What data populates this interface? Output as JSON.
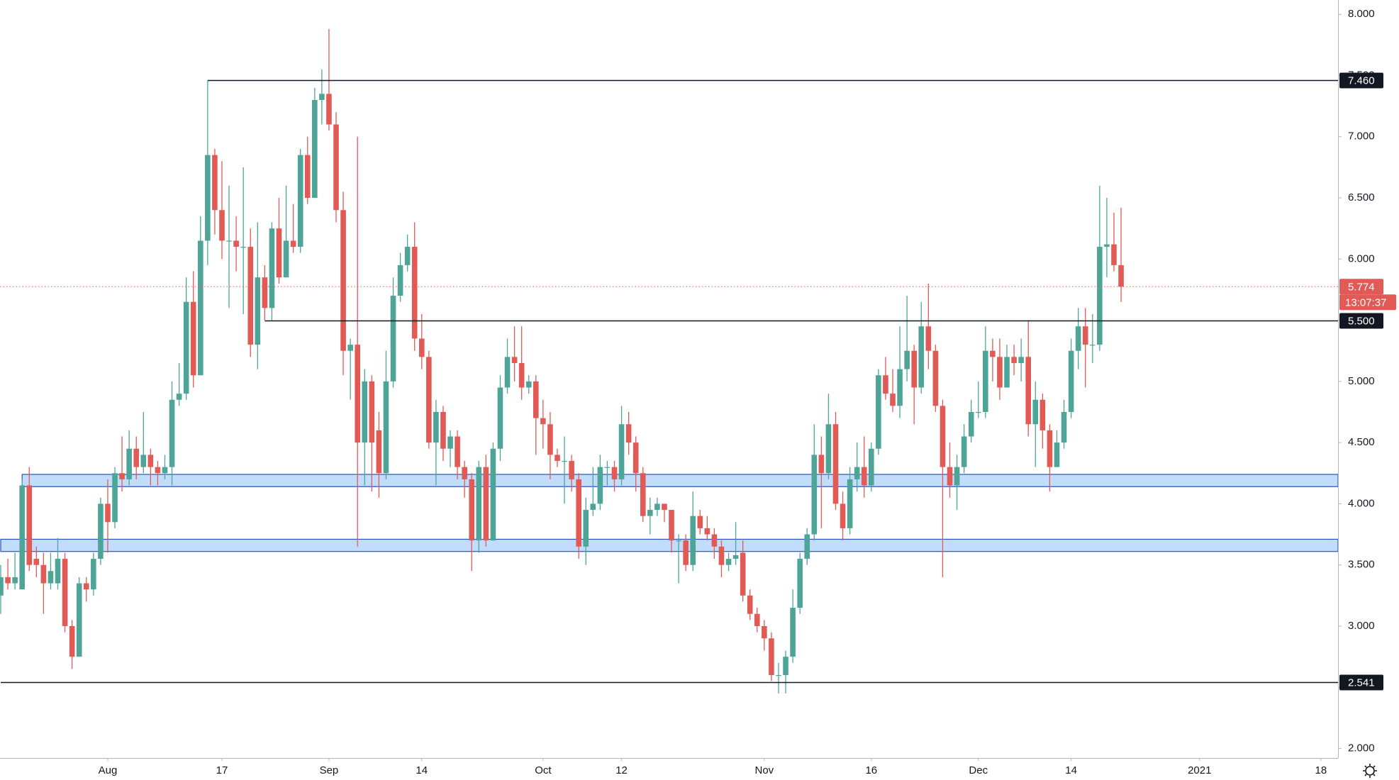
{
  "chart_data": {
    "type": "candlestick",
    "up_color": "#4ea597",
    "down_color": "#e15a55",
    "categories": [
      null,
      null,
      null,
      null,
      null,
      null,
      null,
      null,
      null,
      null,
      null,
      null,
      null,
      null,
      null,
      "Aug",
      null,
      null,
      null,
      null,
      null,
      null,
      null,
      null,
      null,
      null,
      null,
      null,
      null,
      null,
      null,
      "17",
      null,
      null,
      null,
      null,
      null,
      null,
      null,
      null,
      null,
      null,
      null,
      null,
      null,
      null,
      "Sep",
      null,
      null,
      null,
      null,
      null,
      null,
      null,
      null,
      null,
      null,
      null,
      null,
      "14",
      null,
      null,
      null,
      null,
      null,
      null,
      null,
      null,
      null,
      null,
      null,
      null,
      null,
      null,
      null,
      null,
      "Oct",
      null,
      null,
      null,
      null,
      null,
      null,
      null,
      null,
      null,
      null,
      "12",
      null,
      null,
      null,
      null,
      null,
      null,
      null,
      null,
      null,
      null,
      null,
      null,
      null,
      null,
      null,
      null,
      null,
      null,
      null,
      "Nov",
      null,
      null,
      null,
      null,
      null,
      null,
      null,
      null,
      null,
      null,
      null,
      null,
      null,
      null,
      "16",
      null,
      null,
      null,
      null,
      null,
      null,
      null,
      null,
      null,
      null,
      null,
      null,
      null,
      null,
      "Dec",
      null,
      null,
      null,
      null,
      null,
      null,
      null,
      null,
      null,
      null,
      null,
      null,
      "14",
      null,
      null,
      null,
      null,
      null,
      null,
      null,
      null,
      null,
      null,
      null,
      null,
      null,
      null,
      null,
      null,
      null,
      "2021",
      null,
      null,
      null,
      null,
      null,
      null,
      null,
      null,
      null,
      null,
      null,
      null,
      null,
      null,
      null,
      null,
      "18",
      null,
      null
    ],
    "open": [
      3.25,
      3.4,
      3.35,
      3.3,
      4.15,
      3.55,
      3.5,
      3.35,
      3.35,
      3.55,
      3.0,
      2.75,
      3.35,
      3.3,
      3.55,
      4.0,
      3.85,
      4.25,
      4.2,
      4.45,
      4.3,
      4.4,
      4.3,
      4.25,
      4.3,
      4.85,
      4.9,
      5.65,
      5.05,
      6.15,
      6.85,
      6.4,
      6.15,
      6.15,
      6.1,
      6.1,
      5.3,
      5.85,
      5.6,
      6.25,
      5.85,
      6.15,
      6.1,
      6.85,
      6.5,
      7.3,
      7.35,
      7.1,
      6.4,
      5.25,
      5.3,
      4.5,
      5.0,
      4.6,
      4.25,
      5.0,
      5.7,
      5.95,
      6.1,
      5.35,
      5.2,
      4.5,
      4.75,
      4.45,
      4.55,
      4.3,
      4.2,
      3.7,
      4.3,
      3.7,
      4.45,
      4.95,
      5.2,
      5.15,
      4.95,
      5.0,
      4.7,
      4.65,
      4.4,
      4.35,
      4.35,
      4.2,
      3.65,
      3.95,
      4.0,
      4.3,
      4.3,
      4.2,
      4.65,
      4.5,
      4.25,
      3.9,
      3.95,
      4.0,
      3.95,
      3.7,
      3.7,
      3.5,
      3.9,
      3.8,
      3.75,
      3.65,
      3.5,
      3.55,
      3.6,
      3.25,
      3.1,
      3.0,
      2.9,
      2.6,
      2.6,
      2.75,
      3.15,
      3.55,
      3.75,
      4.4,
      4.25,
      4.65,
      4.0,
      3.8,
      4.2,
      4.3,
      4.15,
      4.45,
      5.05,
      4.9,
      4.8,
      5.1,
      5.25,
      4.95,
      5.45,
      5.25,
      4.8,
      4.3,
      4.15,
      4.3,
      4.55,
      4.75,
      4.75,
      5.25,
      5.2,
      4.95,
      5.2,
      5.15,
      5.2,
      4.65,
      4.85,
      4.6,
      4.3,
      4.5,
      4.75,
      5.25,
      5.45,
      5.3,
      5.3,
      6.1,
      6.12,
      5.95,
      null,
      null,
      null,
      null,
      null,
      null,
      null,
      null,
      null,
      null,
      null,
      null,
      null,
      null,
      null,
      null,
      null,
      null,
      null,
      null,
      null,
      null,
      null,
      null,
      null,
      null,
      null,
      null,
      null,
      null
    ],
    "high": [
      3.5,
      3.55,
      3.6,
      4.2,
      4.3,
      3.65,
      3.6,
      3.6,
      3.72,
      3.6,
      3.05,
      3.4,
      3.4,
      3.6,
      4.05,
      4.2,
      4.3,
      4.55,
      4.6,
      4.55,
      4.75,
      4.45,
      4.35,
      4.4,
      5.0,
      5.15,
      5.85,
      5.9,
      6.35,
      7.46,
      6.9,
      6.8,
      6.6,
      6.35,
      6.75,
      6.25,
      6.3,
      5.95,
      6.3,
      6.5,
      6.6,
      6.45,
      6.9,
      7.0,
      7.4,
      7.55,
      7.88,
      7.2,
      6.55,
      5.35,
      7.0,
      5.1,
      5.05,
      4.75,
      5.25,
      5.85,
      6.05,
      6.2,
      6.3,
      5.55,
      5.25,
      4.85,
      4.8,
      4.6,
      4.6,
      4.35,
      4.25,
      4.35,
      4.4,
      4.5,
      5.05,
      5.35,
      5.45,
      5.45,
      5.05,
      5.05,
      4.85,
      4.75,
      4.45,
      4.55,
      4.4,
      4.25,
      4.05,
      4.3,
      4.4,
      4.35,
      4.35,
      4.8,
      4.75,
      4.55,
      4.3,
      4.05,
      4.05,
      4.0,
      3.95,
      3.75,
      3.75,
      4.1,
      3.95,
      3.9,
      3.8,
      3.7,
      3.6,
      3.85,
      3.7,
      3.3,
      3.15,
      3.05,
      2.95,
      2.7,
      2.8,
      3.3,
      3.6,
      3.8,
      4.65,
      4.55,
      4.9,
      4.75,
      4.1,
      4.3,
      4.5,
      4.55,
      4.5,
      5.1,
      5.2,
      5.1,
      5.45,
      5.7,
      5.3,
      5.65,
      5.8,
      5.3,
      4.85,
      4.5,
      4.4,
      4.65,
      4.85,
      5.0,
      5.45,
      5.35,
      5.35,
      5.3,
      5.3,
      5.35,
      5.5,
      5.0,
      4.9,
      4.65,
      4.6,
      4.85,
      5.35,
      5.6,
      5.6,
      5.55,
      6.6,
      6.5,
      6.38,
      6.42,
      null,
      null,
      null,
      null,
      null,
      null,
      null,
      null,
      null,
      null,
      null,
      null,
      null,
      null,
      null,
      null,
      null,
      null,
      null,
      null,
      null,
      null,
      null,
      null,
      null,
      null,
      null,
      null,
      null,
      null
    ],
    "low": [
      3.1,
      3.3,
      3.3,
      3.3,
      3.45,
      3.4,
      3.1,
      3.3,
      3.3,
      2.95,
      2.65,
      2.75,
      3.2,
      3.25,
      3.5,
      3.6,
      3.8,
      4.1,
      4.15,
      4.2,
      4.25,
      4.15,
      4.15,
      4.2,
      4.15,
      4.8,
      4.85,
      4.95,
      5.05,
      5.95,
      6.2,
      6.0,
      5.6,
      5.9,
      5.55,
      5.2,
      5.1,
      5.5,
      5.5,
      5.8,
      5.85,
      6.05,
      6.05,
      6.45,
      6.5,
      7.1,
      7.05,
      6.3,
      5.05,
      4.85,
      3.65,
      4.15,
      4.1,
      4.05,
      4.2,
      4.95,
      5.65,
      5.9,
      5.25,
      5.1,
      4.45,
      4.15,
      4.35,
      4.3,
      4.2,
      4.05,
      3.45,
      3.6,
      3.65,
      3.7,
      4.35,
      4.9,
      5.0,
      4.85,
      4.9,
      4.4,
      4.45,
      4.2,
      4.3,
      4.0,
      4.1,
      3.55,
      3.5,
      3.9,
      3.95,
      4.15,
      4.1,
      4.15,
      4.4,
      4.1,
      3.85,
      3.75,
      3.9,
      3.85,
      3.6,
      3.35,
      3.45,
      3.45,
      3.75,
      3.7,
      3.55,
      3.4,
      3.45,
      3.5,
      3.2,
      3.05,
      2.95,
      2.8,
      2.55,
      2.45,
      2.45,
      2.7,
      3.1,
      3.5,
      3.7,
      3.8,
      4.2,
      3.95,
      3.7,
      3.75,
      4.1,
      4.05,
      4.1,
      4.4,
      4.85,
      4.75,
      4.7,
      5.0,
      4.65,
      4.9,
      5.1,
      4.75,
      3.4,
      4.05,
      3.95,
      4.25,
      4.5,
      4.7,
      4.7,
      5.0,
      4.85,
      4.95,
      5.05,
      5.0,
      4.55,
      4.3,
      4.45,
      4.1,
      4.3,
      4.45,
      4.7,
      5.1,
      4.95,
      5.15,
      5.25,
      5.85,
      5.9,
      5.65,
      null,
      null,
      null,
      null,
      null,
      null,
      null,
      null,
      null,
      null,
      null,
      null,
      null,
      null,
      null,
      null,
      null,
      null,
      null,
      null,
      null,
      null,
      null,
      null,
      null,
      null,
      null,
      null,
      null,
      null
    ],
    "close": [
      3.4,
      3.35,
      3.4,
      4.15,
      3.5,
      3.5,
      3.35,
      3.45,
      3.55,
      3.0,
      2.75,
      3.35,
      3.3,
      3.55,
      4.0,
      3.85,
      4.25,
      4.2,
      4.45,
      4.3,
      4.4,
      4.3,
      4.25,
      4.3,
      4.85,
      4.9,
      5.65,
      5.05,
      6.15,
      6.85,
      6.4,
      6.15,
      6.15,
      6.1,
      6.1,
      5.3,
      5.85,
      5.6,
      6.25,
      5.85,
      6.15,
      6.1,
      6.85,
      6.5,
      7.3,
      7.35,
      7.1,
      6.4,
      5.25,
      5.3,
      4.5,
      5.0,
      4.5,
      4.25,
      5.0,
      5.7,
      5.95,
      6.1,
      5.35,
      5.2,
      4.5,
      4.75,
      4.45,
      4.55,
      4.3,
      4.2,
      3.7,
      4.3,
      3.7,
      4.45,
      4.95,
      5.2,
      5.15,
      4.95,
      5.0,
      4.7,
      4.65,
      4.4,
      4.35,
      4.35,
      4.2,
      3.65,
      3.95,
      4.0,
      4.3,
      4.3,
      4.2,
      4.65,
      4.5,
      4.25,
      3.9,
      3.95,
      4.0,
      3.95,
      3.7,
      3.7,
      3.5,
      3.9,
      3.8,
      3.75,
      3.65,
      3.5,
      3.55,
      3.58,
      3.25,
      3.1,
      3.0,
      2.9,
      2.6,
      2.6,
      2.75,
      3.15,
      3.55,
      3.75,
      4.4,
      4.25,
      4.65,
      4.0,
      3.8,
      4.2,
      4.3,
      4.15,
      4.45,
      5.05,
      4.9,
      4.8,
      5.1,
      5.25,
      4.95,
      5.45,
      5.25,
      4.8,
      4.3,
      4.15,
      4.3,
      4.55,
      4.75,
      4.75,
      5.25,
      5.2,
      4.95,
      5.2,
      5.15,
      5.2,
      4.65,
      4.85,
      4.6,
      4.3,
      4.5,
      4.75,
      5.25,
      5.45,
      5.3,
      5.3,
      6.1,
      6.12,
      5.95,
      5.774,
      null,
      null,
      null,
      null,
      null,
      null,
      null,
      null,
      null,
      null,
      null,
      null,
      null,
      null,
      null,
      null,
      null,
      null,
      null,
      null,
      null,
      null,
      null,
      null,
      null,
      null,
      null,
      null,
      null,
      null
    ],
    "ylim": [
      1.922,
      8.117
    ],
    "yticks": [
      {
        "value": 2,
        "label": "2.000"
      },
      {
        "value": 2.5,
        "label": "2.500"
      },
      {
        "value": 3,
        "label": "3.000"
      },
      {
        "value": 3.5,
        "label": "3.500"
      },
      {
        "value": 4,
        "label": "4.000"
      },
      {
        "value": 4.5,
        "label": "4.500"
      },
      {
        "value": 5,
        "label": "5.000"
      },
      {
        "value": 5.5,
        "label": "5.500"
      },
      {
        "value": 6,
        "label": "6.000"
      },
      {
        "value": 6.5,
        "label": "6.500"
      },
      {
        "value": 7,
        "label": "7.000"
      },
      {
        "value": 7.5,
        "label": "7.500"
      },
      {
        "value": 8,
        "label": "8.000"
      }
    ],
    "levels": [
      {
        "value": 7.46,
        "label": "7.460"
      },
      {
        "value": 5.5,
        "label": "5.500"
      },
      {
        "value": 2.541,
        "label": "2.541"
      }
    ],
    "zones": [
      [
        4.14,
        4.24
      ],
      [
        3.61,
        3.71
      ]
    ],
    "last_price": {
      "value": 5.774,
      "label": "5.774",
      "countdown": "13:07:37"
    }
  }
}
